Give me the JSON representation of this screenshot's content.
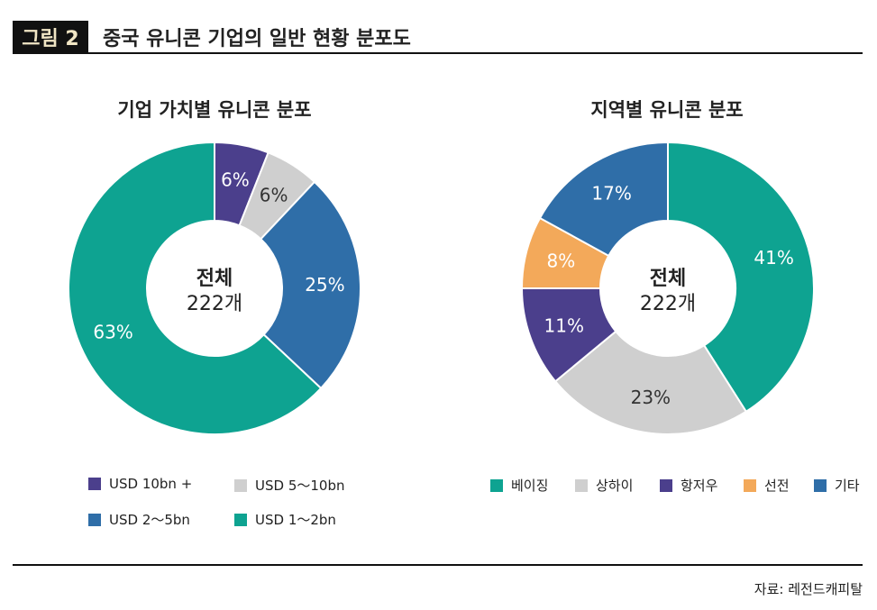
{
  "figure": {
    "label": "그림 2",
    "title": "중국 유니콘 기업의 일반 현황 분포도"
  },
  "colors": {
    "purple": "#4b3f8c",
    "lightgray": "#cfcfcf",
    "blue": "#2f6ea8",
    "teal": "#0ea391",
    "orange": "#f3a95a"
  },
  "chart_data": [
    {
      "type": "pie",
      "variant": "donut",
      "title": "기업 가치별 유니콘 분포",
      "center_label": [
        "전체",
        "222개"
      ],
      "slices": [
        {
          "name": "USD 10bn +",
          "value": 6,
          "label": "6%",
          "color": "#4b3f8c",
          "label_color": "#ffffff"
        },
        {
          "name": "USD 5～10bn",
          "value": 6,
          "label": "6%",
          "color": "#cfcfcf",
          "label_color": "#333333"
        },
        {
          "name": "USD 2～5bn",
          "value": 25,
          "label": "25%",
          "color": "#2f6ea8",
          "label_color": "#ffffff"
        },
        {
          "name": "USD 1～2bn",
          "value": 63,
          "label": "63%",
          "color": "#0ea391",
          "label_color": "#ffffff"
        }
      ],
      "legend": [
        "USD 10bn +",
        "USD 5～10bn",
        "USD 2～5bn",
        "USD 1～2bn"
      ]
    },
    {
      "type": "pie",
      "variant": "donut",
      "title": "지역별 유니콘 분포",
      "center_label": [
        "전체",
        "222개"
      ],
      "slices": [
        {
          "name": "베이징",
          "value": 41,
          "label": "41%",
          "color": "#0ea391",
          "label_color": "#ffffff"
        },
        {
          "name": "상하이",
          "value": 23,
          "label": "23%",
          "color": "#cfcfcf",
          "label_color": "#333333"
        },
        {
          "name": "항저우",
          "value": 11,
          "label": "11%",
          "color": "#4b3f8c",
          "label_color": "#ffffff"
        },
        {
          "name": "선전",
          "value": 8,
          "label": "8%",
          "color": "#f3a95a",
          "label_color": "#ffffff"
        },
        {
          "name": "기타",
          "value": 17,
          "label": "17%",
          "color": "#2f6ea8",
          "label_color": "#ffffff"
        }
      ],
      "legend": [
        "베이징",
        "상하이",
        "항저우",
        "선전",
        "기타"
      ]
    }
  ],
  "source": "자료: 레전드캐피탈"
}
